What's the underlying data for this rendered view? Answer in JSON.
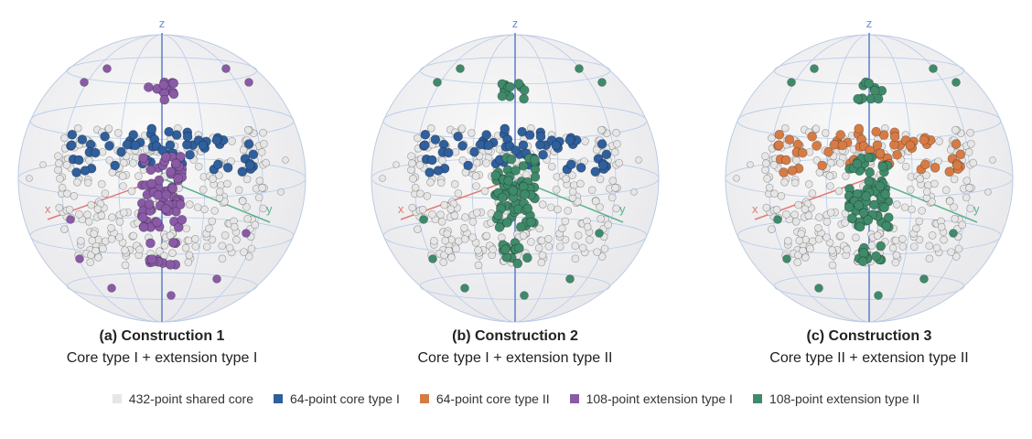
{
  "panels": [
    {
      "caption": "(a) Construction 1",
      "subtitle": "Core type I + extension type I",
      "axes": {
        "x": "x",
        "y": "y",
        "z": "z"
      },
      "core_color": "#2f5f9c",
      "extension_color": "#8a5aa6"
    },
    {
      "caption": "(b) Construction 2",
      "subtitle": "Core type I + extension type II",
      "axes": {
        "x": "x",
        "y": "y",
        "z": "z"
      },
      "core_color": "#2f5f9c",
      "extension_color": "#3f8a6a"
    },
    {
      "caption": "(c) Construction 3",
      "subtitle": "Core type II + extension type II",
      "axes": {
        "x": "x",
        "y": "y",
        "z": "z"
      },
      "core_color": "#d77b45",
      "extension_color": "#3f8a6a"
    }
  ],
  "legend": [
    {
      "label": "432-point shared core",
      "color": "#e6e6e6"
    },
    {
      "label": "64-point core type I",
      "color": "#2f5f9c"
    },
    {
      "label": "64-point core type II",
      "color": "#d77b45"
    },
    {
      "label": "108-point extension type I",
      "color": "#8a5aa6"
    },
    {
      "label": "108-point extension type II",
      "color": "#3f8a6a"
    }
  ]
}
